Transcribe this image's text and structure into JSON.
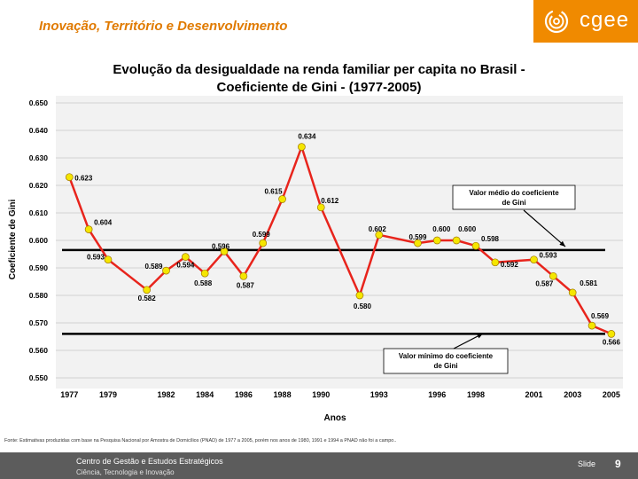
{
  "header": {
    "title": "Inovação, Território e Desenvolvimento",
    "logo_text": "cgee"
  },
  "colors": {
    "accent": "#f08a00",
    "line": "#e8241c",
    "marker": "#f5e600",
    "grid": "#c8c8c8",
    "reference": "#000000"
  },
  "chart_data": {
    "type": "line",
    "title_line1": "Evolução da desigualdade na renda familiar per capita no Brasil -",
    "title_line2": "Coeficiente de Gini - (1977-2005)",
    "xlabel": "Anos",
    "ylabel": "Coeficiente de Gini",
    "ylim": [
      0.55,
      0.65
    ],
    "y_ticks": [
      "0.650",
      "0.640",
      "0.630",
      "0.620",
      "0.610",
      "0.600",
      "0.590",
      "0.580",
      "0.570",
      "0.560",
      "0.550"
    ],
    "x_ticks": [
      "1977",
      "1979",
      "1982",
      "1984",
      "1986",
      "1988",
      "1990",
      "1993",
      "1996",
      "1998",
      "2001",
      "2003",
      "2005"
    ],
    "grid": true,
    "series": [
      {
        "points": [
          {
            "x": 1977,
            "y": 0.623,
            "label": "0.623"
          },
          {
            "x": 1978,
            "y": 0.604,
            "label": "0.604"
          },
          {
            "x": 1979,
            "y": 0.593,
            "label": "0.593"
          },
          {
            "x": 1981,
            "y": 0.582,
            "label": "0.582"
          },
          {
            "x": 1982,
            "y": 0.589,
            "label": "0.589"
          },
          {
            "x": 1983,
            "y": 0.594,
            "label": "0.594"
          },
          {
            "x": 1984,
            "y": 0.588,
            "label": "0.588"
          },
          {
            "x": 1985,
            "y": 0.596,
            "label": "0.596"
          },
          {
            "x": 1986,
            "y": 0.587,
            "label": "0.587"
          },
          {
            "x": 1987,
            "y": 0.599,
            "label": "0.599"
          },
          {
            "x": 1988,
            "y": 0.615,
            "label": "0.615"
          },
          {
            "x": 1989,
            "y": 0.634,
            "label": "0.634"
          },
          {
            "x": 1990,
            "y": 0.612,
            "label": "0.612"
          },
          {
            "x": 1992,
            "y": 0.58,
            "label": "0.580"
          },
          {
            "x": 1993,
            "y": 0.602,
            "label": "0.602"
          },
          {
            "x": 1995,
            "y": 0.599,
            "label": "0.599"
          },
          {
            "x": 1996,
            "y": 0.6,
            "label": "0.600"
          },
          {
            "x": 1997,
            "y": 0.6,
            "label": "0.600"
          },
          {
            "x": 1998,
            "y": 0.598,
            "label": "0.598"
          },
          {
            "x": 1999,
            "y": 0.592,
            "label": "0.592"
          },
          {
            "x": 2001,
            "y": 0.593,
            "label": "0.593"
          },
          {
            "x": 2002,
            "y": 0.587,
            "label": "0.587"
          },
          {
            "x": 2003,
            "y": 0.581,
            "label": "0.581"
          },
          {
            "x": 2004,
            "y": 0.569,
            "label": "0.569"
          },
          {
            "x": 2005,
            "y": 0.566,
            "label": "0.566"
          }
        ]
      }
    ],
    "reference_lines": [
      {
        "y": 0.5965,
        "label_line1": "Valor médio do coeficiente",
        "label_line2": "de Gini"
      },
      {
        "y": 0.566,
        "label_line1": "Valor mínimo do coeficiente",
        "label_line2": "de Gini"
      }
    ]
  },
  "source": "Fonte: Estimativas produzidas com base na Pesquisa Nacional por Amostra de Domicílios (PNAD) de 1977 a 2005, porém nos anos de 1980, 1991 e 1994 a PNAD não foi a campo..",
  "footer": {
    "line1": "Centro de Gestão e Estudos Estratégicos",
    "line2": "Ciência, Tecnologia e Inovação",
    "slide_label": "Slide",
    "slide_number": "9"
  }
}
